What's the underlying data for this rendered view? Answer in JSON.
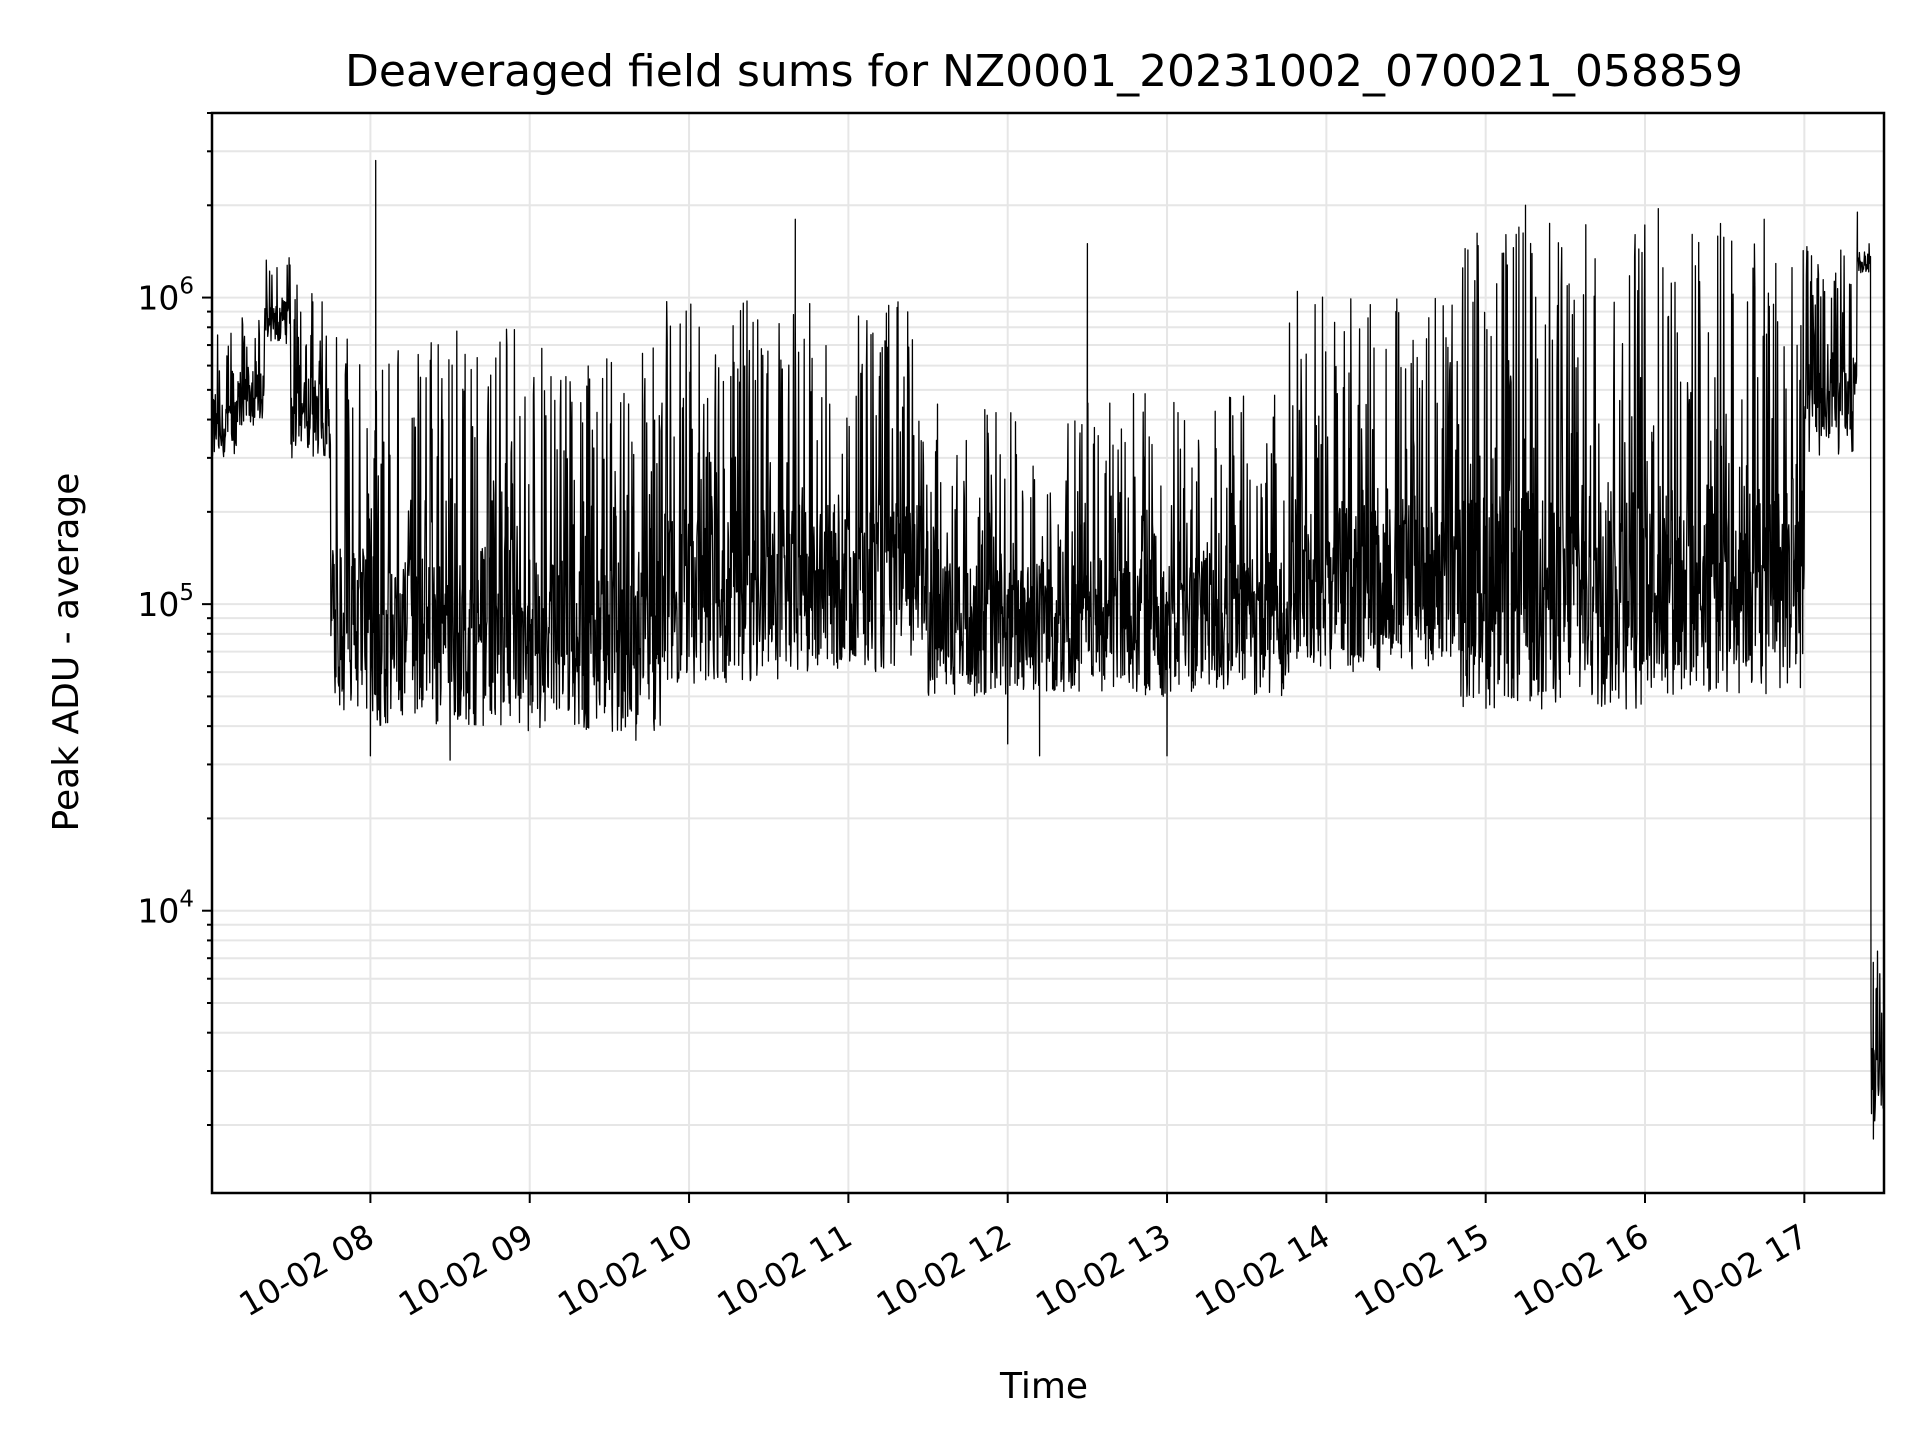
{
  "chart_data": {
    "type": "line",
    "title": "Deaveraged field sums for NZ0001_20231002_070021_058859",
    "xlabel": "Time",
    "ylabel": "Peak ADU - average",
    "yscale": "log",
    "grid": true,
    "grid_minor": true,
    "xlim": [
      "2023-10-02T07:00:21",
      "2023-10-02T17:30:00"
    ],
    "ylim": [
      1200,
      4000000
    ],
    "x_ticks": [
      "10-02 08",
      "10-02 09",
      "10-02 10",
      "10-02 11",
      "10-02 12",
      "10-02 13",
      "10-02 14",
      "10-02 15",
      "10-02 16",
      "10-02 17"
    ],
    "y_ticks": [
      {
        "base": "10",
        "exp": "4",
        "value": 10000
      },
      {
        "base": "10",
        "exp": "5",
        "value": 100000
      },
      {
        "base": "10",
        "exp": "6",
        "value": 1000000
      }
    ],
    "series": [
      {
        "color": "#000000",
        "segments": [
          {
            "start": "2023-10-02T07:00:21",
            "end": "2023-10-02T07:10:00",
            "low": 300000,
            "high": 800000
          },
          {
            "start": "2023-10-02T07:10:00",
            "end": "2023-10-02T07:20:00",
            "low": 380000,
            "high": 950000
          },
          {
            "start": "2023-10-02T07:20:00",
            "end": "2023-10-02T07:30:00",
            "low": 700000,
            "high": 1350000
          },
          {
            "start": "2023-10-02T07:30:00",
            "end": "2023-10-02T07:45:00",
            "low": 300000,
            "high": 1100000
          },
          {
            "start": "2023-10-02T07:45:00",
            "end": "2023-10-02T08:00:00",
            "low": 45000,
            "high": 850000
          },
          {
            "start": "2023-10-02T08:00:00",
            "end": "2023-10-02T08:55:00",
            "low": 40000,
            "high": 800000
          },
          {
            "start": "2023-10-02T08:55:00",
            "end": "2023-10-02T09:50:00",
            "low": 38000,
            "high": 700000
          },
          {
            "start": "2023-10-02T09:50:00",
            "end": "2023-10-02T10:50:00",
            "low": 55000,
            "high": 1000000
          },
          {
            "start": "2023-10-02T10:50:00",
            "end": "2023-10-02T11:30:00",
            "low": 60000,
            "high": 1000000
          },
          {
            "start": "2023-10-02T11:30:00",
            "end": "2023-10-02T12:30:00",
            "low": 50000,
            "high": 450000
          },
          {
            "start": "2023-10-02T12:30:00",
            "end": "2023-10-02T13:45:00",
            "low": 50000,
            "high": 500000
          },
          {
            "start": "2023-10-02T13:45:00",
            "end": "2023-10-02T14:50:00",
            "low": 60000,
            "high": 1100000
          },
          {
            "start": "2023-10-02T14:50:00",
            "end": "2023-10-02T16:00:00",
            "low": 45000,
            "high": 1800000
          },
          {
            "start": "2023-10-02T16:00:00",
            "end": "2023-10-02T17:00:00",
            "low": 50000,
            "high": 1800000
          },
          {
            "start": "2023-10-02T17:00:00",
            "end": "2023-10-02T17:20:00",
            "low": 300000,
            "high": 1500000
          },
          {
            "start": "2023-10-02T17:20:00",
            "end": "2023-10-02T17:25:00",
            "low": 1200000,
            "high": 1500000
          },
          {
            "start": "2023-10-02T17:25:00",
            "end": "2023-10-02T17:30:00",
            "low": 2000,
            "high": 9000
          }
        ],
        "spikes": [
          {
            "t": "2023-10-02T08:02:00",
            "v": 2800000
          },
          {
            "t": "2023-10-02T08:00:00",
            "v": 32000
          },
          {
            "t": "2023-10-02T08:30:00",
            "v": 31000
          },
          {
            "t": "2023-10-02T09:40:00",
            "v": 36000
          },
          {
            "t": "2023-10-02T10:40:00",
            "v": 1800000
          },
          {
            "t": "2023-10-02T12:00:00",
            "v": 35000
          },
          {
            "t": "2023-10-02T12:12:00",
            "v": 32000
          },
          {
            "t": "2023-10-02T12:30:00",
            "v": 1500000
          },
          {
            "t": "2023-10-02T13:00:00",
            "v": 32000
          },
          {
            "t": "2023-10-02T15:15:00",
            "v": 2000000
          },
          {
            "t": "2023-10-02T16:05:00",
            "v": 1950000
          },
          {
            "t": "2023-10-02T17:20:00",
            "v": 1900000
          },
          {
            "t": "2023-10-02T17:26:00",
            "v": 1800
          }
        ]
      }
    ]
  }
}
